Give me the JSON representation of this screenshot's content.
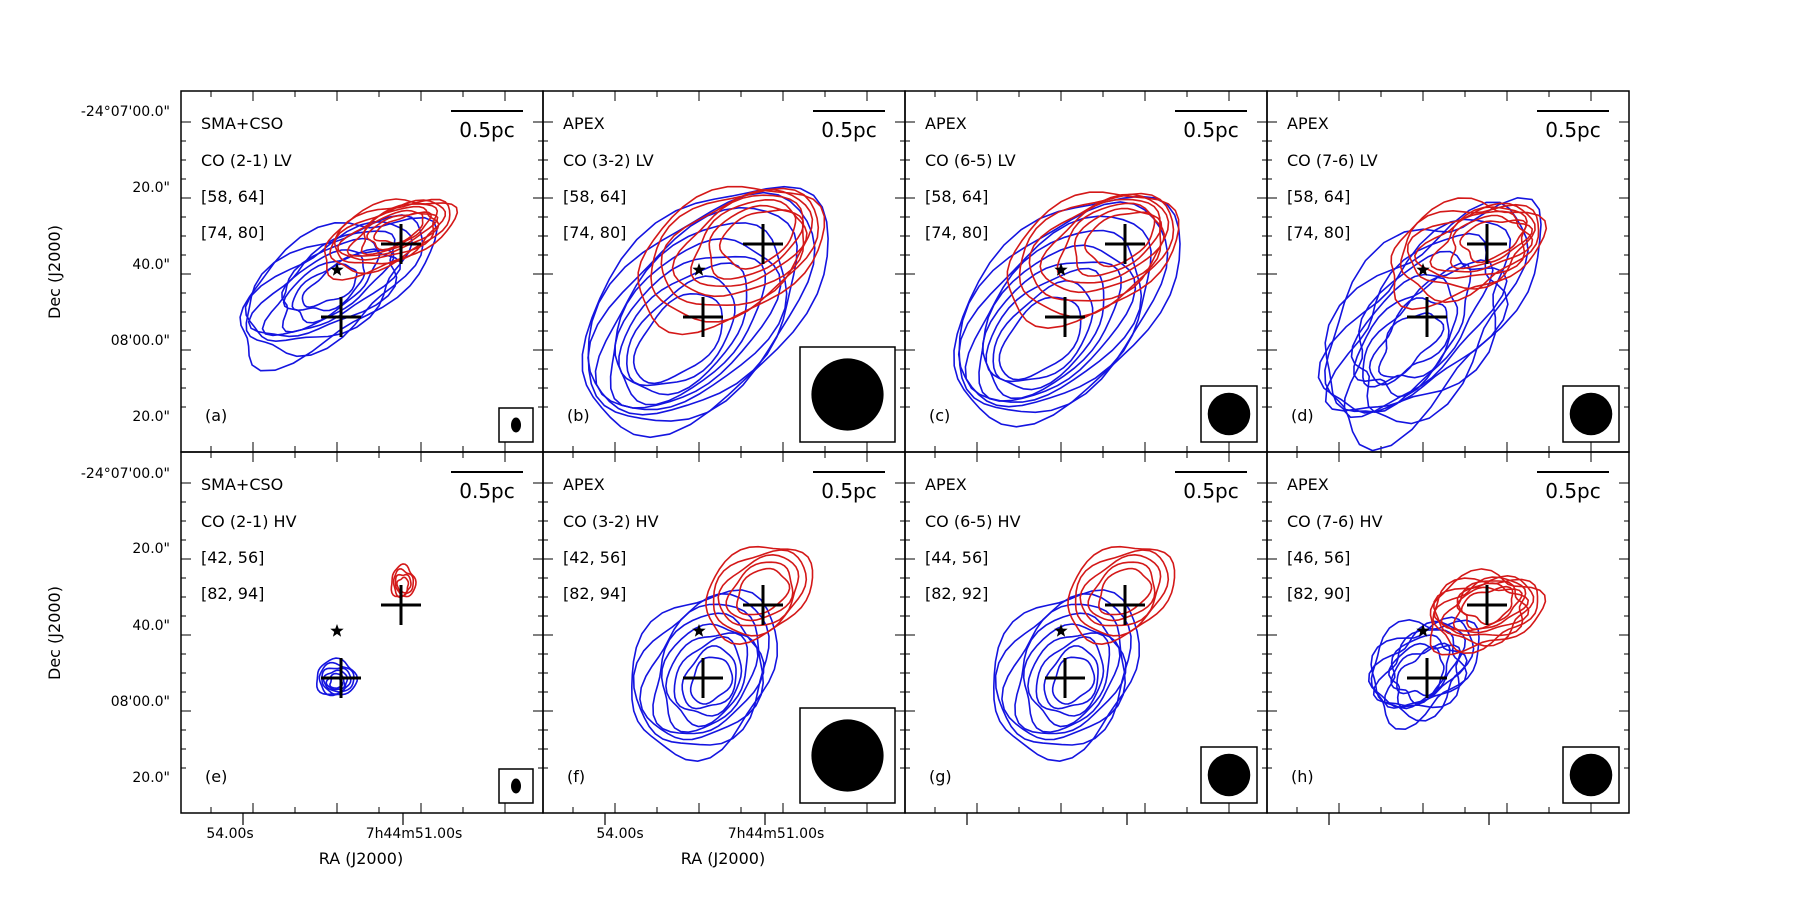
{
  "figure": {
    "colors": {
      "blue_lobe": "#1414e0",
      "red_lobe": "#d41818",
      "frame": "#000000"
    },
    "ra_ticks": [
      "54.00s",
      "7h44m51.00s"
    ],
    "dec_ticks": [
      "-24°07'00.0\"",
      "20.0\"",
      "40.0\"",
      "08'00.0\"",
      "20.0\""
    ],
    "ra_label": "RA (J2000)",
    "dec_label": "Dec (J2000)",
    "scalebar_label": "0.5pc",
    "panels": [
      {
        "id": "a",
        "panel_label": "(a)",
        "telescope": "SMA+CSO",
        "line": "CO (2-1) LV",
        "blue_range": "[58, 64]",
        "red_range": "[74, 80]",
        "beam_size": "small",
        "lobe_style": "compact"
      },
      {
        "id": "b",
        "panel_label": "(b)",
        "telescope": "APEX",
        "line": "CO (3-2) LV",
        "blue_range": "[58, 64]",
        "red_range": "[74, 80]",
        "beam_size": "large",
        "lobe_style": "extended"
      },
      {
        "id": "c",
        "panel_label": "(c)",
        "telescope": "APEX",
        "line": "CO (6-5) LV",
        "blue_range": "[58, 64]",
        "red_range": "[74, 80]",
        "beam_size": "medium",
        "lobe_style": "extended"
      },
      {
        "id": "d",
        "panel_label": "(d)",
        "telescope": "APEX",
        "line": "CO (7-6) LV",
        "blue_range": "[58, 64]",
        "red_range": "[74, 80]",
        "beam_size": "medium",
        "lobe_style": "irregular"
      },
      {
        "id": "e",
        "panel_label": "(e)",
        "telescope": "SMA+CSO",
        "line": "CO (2-1) HV",
        "blue_range": "[42, 56]",
        "red_range": "[82, 94]",
        "beam_size": "small",
        "lobe_style": "tiny"
      },
      {
        "id": "f",
        "panel_label": "(f)",
        "telescope": "APEX",
        "line": "CO (3-2) HV",
        "blue_range": "[42, 56]",
        "red_range": "[82, 94]",
        "beam_size": "large",
        "lobe_style": "hv"
      },
      {
        "id": "g",
        "panel_label": "(g)",
        "telescope": "APEX",
        "line": "CO (6-5) HV",
        "blue_range": "[44, 56]",
        "red_range": "[82, 92]",
        "beam_size": "medium",
        "lobe_style": "hv"
      },
      {
        "id": "h",
        "panel_label": "(h)",
        "telescope": "APEX",
        "line": "CO (7-6) HV",
        "blue_range": "[46, 56]",
        "red_range": "[82, 90]",
        "beam_size": "medium",
        "lobe_style": "hv-irregular"
      }
    ]
  }
}
